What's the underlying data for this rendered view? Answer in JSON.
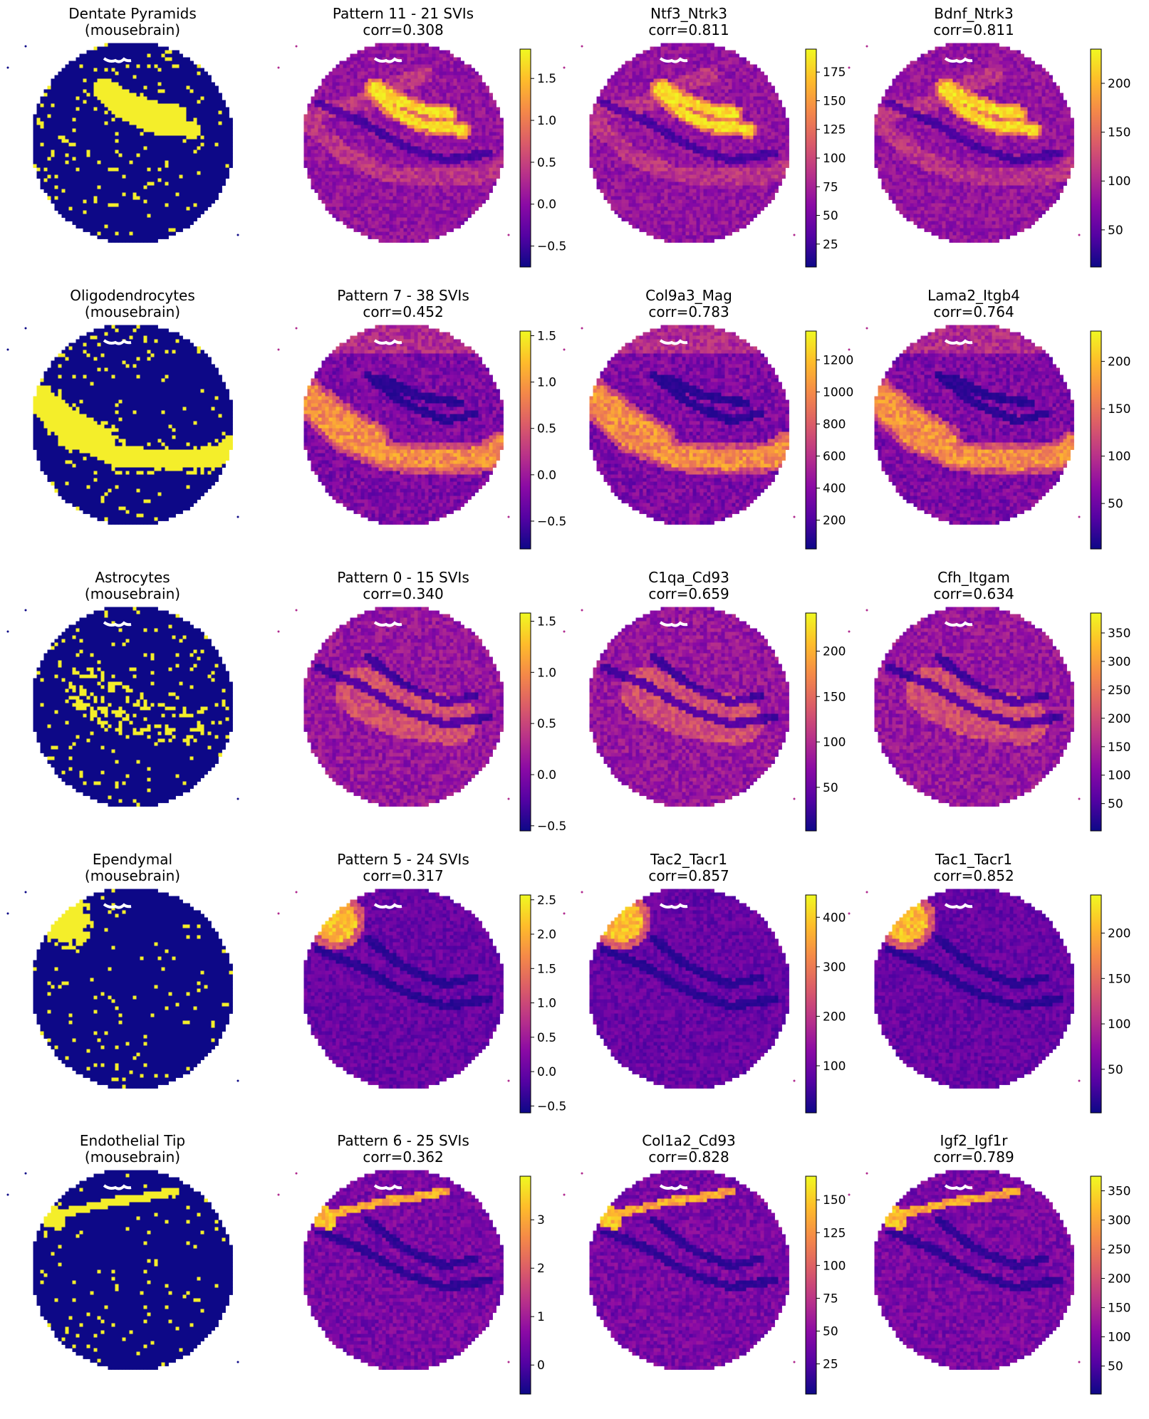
{
  "figure": {
    "colormap": "plasma",
    "categorical_colors": {
      "positive": "#f4ee2a",
      "negative": "#0d0887"
    },
    "missing_color": "#ffffff",
    "plot_type": "spatial scatter on circular tissue section"
  },
  "rows": [
    {
      "panels": [
        {
          "title_line1": "Dentate Pyramids",
          "title_line2": "(mousebrain)",
          "kind": "categorical",
          "feature": "dentate-band"
        },
        {
          "title_line1": "Pattern 11 - 21 SVIs",
          "title_line2": "corr=0.308",
          "kind": "continuous",
          "feature": "dentate-band",
          "colorbar": {
            "min": -0.75,
            "max": 1.85,
            "ticks": [
              1.5,
              1.0,
              0.5,
              0.0,
              -0.5
            ],
            "tick_labels": [
              "1.5",
              "1.0",
              "0.5",
              "0.0",
              "−0.5"
            ]
          }
        },
        {
          "title_line1": "Ntf3_Ntrk3",
          "title_line2": "corr=0.811",
          "kind": "continuous",
          "feature": "dentate-band",
          "colorbar": {
            "min": 5,
            "max": 195,
            "ticks": [
              175,
              150,
              125,
              100,
              75,
              50,
              25
            ],
            "tick_labels": [
              "175",
              "150",
              "125",
              "100",
              "75",
              "50",
              "25"
            ]
          }
        },
        {
          "title_line1": "Bdnf_Ntrk3",
          "title_line2": "corr=0.811",
          "kind": "continuous",
          "feature": "dentate-band",
          "colorbar": {
            "min": 12,
            "max": 235,
            "ticks": [
              200,
              150,
              100,
              50
            ],
            "tick_labels": [
              "200",
              "150",
              "100",
              "50"
            ]
          }
        }
      ]
    },
    {
      "panels": [
        {
          "title_line1": "Oligodendrocytes",
          "title_line2": "(mousebrain)",
          "kind": "categorical",
          "feature": "white-matter"
        },
        {
          "title_line1": "Pattern 7 - 38 SVIs",
          "title_line2": "corr=0.452",
          "kind": "continuous",
          "feature": "white-matter",
          "colorbar": {
            "min": -0.8,
            "max": 1.55,
            "ticks": [
              1.5,
              1.0,
              0.5,
              0.0,
              -0.5
            ],
            "tick_labels": [
              "1.5",
              "1.0",
              "0.5",
              "0.0",
              "−0.5"
            ]
          }
        },
        {
          "title_line1": "Col9a3_Mag",
          "title_line2": "corr=0.783",
          "kind": "continuous",
          "feature": "white-matter",
          "colorbar": {
            "min": 20,
            "max": 1380,
            "ticks": [
              1200,
              1000,
              800,
              600,
              400,
              200
            ],
            "tick_labels": [
              "1200",
              "1000",
              "800",
              "600",
              "400",
              "200"
            ]
          }
        },
        {
          "title_line1": "Lama2_Itgb4",
          "title_line2": "corr=0.764",
          "kind": "continuous",
          "feature": "white-matter",
          "colorbar": {
            "min": 2,
            "max": 232,
            "ticks": [
              200,
              150,
              100,
              50
            ],
            "tick_labels": [
              "200",
              "150",
              "100",
              "50"
            ]
          }
        }
      ]
    },
    {
      "panels": [
        {
          "title_line1": "Astrocytes",
          "title_line2": "(mousebrain)",
          "kind": "categorical",
          "feature": "astro"
        },
        {
          "title_line1": "Pattern 0 - 15 SVIs",
          "title_line2": "corr=0.340",
          "kind": "continuous",
          "feature": "astro",
          "colorbar": {
            "min": -0.55,
            "max": 1.58,
            "ticks": [
              1.5,
              1.0,
              0.5,
              0.0,
              -0.5
            ],
            "tick_labels": [
              "1.5",
              "1.0",
              "0.5",
              "0.0",
              "−0.5"
            ]
          }
        },
        {
          "title_line1": "C1qa_Cd93",
          "title_line2": "corr=0.659",
          "kind": "continuous",
          "feature": "astro",
          "colorbar": {
            "min": 2,
            "max": 242,
            "ticks": [
              200,
              150,
              100,
              50
            ],
            "tick_labels": [
              "200",
              "150",
              "100",
              "50"
            ]
          }
        },
        {
          "title_line1": "Cfh_Itgam",
          "title_line2": "corr=0.634",
          "kind": "continuous",
          "feature": "astro",
          "colorbar": {
            "min": 2,
            "max": 385,
            "ticks": [
              350,
              300,
              250,
              200,
              150,
              100,
              50
            ],
            "tick_labels": [
              "350",
              "300",
              "250",
              "200",
              "150",
              "100",
              "50"
            ]
          }
        }
      ]
    },
    {
      "panels": [
        {
          "title_line1": "Ependymal",
          "title_line2": "(mousebrain)",
          "kind": "categorical",
          "feature": "ependymal"
        },
        {
          "title_line1": "Pattern 5 - 24 SVIs",
          "title_line2": "corr=0.317",
          "kind": "continuous",
          "feature": "ependymal",
          "colorbar": {
            "min": -0.6,
            "max": 2.57,
            "ticks": [
              2.5,
              2.0,
              1.5,
              1.0,
              0.5,
              0.0,
              -0.5
            ],
            "tick_labels": [
              "2.5",
              "2.0",
              "1.5",
              "1.0",
              "0.5",
              "0.0",
              "−0.5"
            ]
          }
        },
        {
          "title_line1": "Tac2_Tacr1",
          "title_line2": "corr=0.857",
          "kind": "continuous",
          "feature": "ependymal",
          "colorbar": {
            "min": 5,
            "max": 445,
            "ticks": [
              400,
              300,
              200,
              100
            ],
            "tick_labels": [
              "400",
              "300",
              "200",
              "100"
            ]
          }
        },
        {
          "title_line1": "Tac1_Tacr1",
          "title_line2": "corr=0.852",
          "kind": "continuous",
          "feature": "ependymal",
          "colorbar": {
            "min": 2,
            "max": 242,
            "ticks": [
              200,
              150,
              100,
              50
            ],
            "tick_labels": [
              "200",
              "150",
              "100",
              "50"
            ]
          }
        }
      ]
    },
    {
      "panels": [
        {
          "title_line1": "Endothelial Tip",
          "title_line2": "(mousebrain)",
          "kind": "categorical",
          "feature": "endothelial"
        },
        {
          "title_line1": "Pattern 6 - 25 SVIs",
          "title_line2": "corr=0.362",
          "kind": "continuous",
          "feature": "endothelial",
          "colorbar": {
            "min": -0.6,
            "max": 3.9,
            "ticks": [
              3,
              2,
              1,
              0
            ],
            "tick_labels": [
              "3",
              "2",
              "1",
              "0"
            ]
          }
        },
        {
          "title_line1": "Col1a2_Cd93",
          "title_line2": "corr=0.828",
          "kind": "continuous",
          "feature": "endothelial",
          "colorbar": {
            "min": 2,
            "max": 168,
            "ticks": [
              150,
              125,
              100,
              75,
              50,
              25
            ],
            "tick_labels": [
              "150",
              "125",
              "100",
              "75",
              "50",
              "25"
            ]
          }
        },
        {
          "title_line1": "Igf2_Igf1r",
          "title_line2": "corr=0.789",
          "kind": "continuous",
          "feature": "endothelial",
          "colorbar": {
            "min": 2,
            "max": 375,
            "ticks": [
              350,
              300,
              250,
              200,
              150,
              100,
              50
            ],
            "tick_labels": [
              "350",
              "300",
              "250",
              "200",
              "150",
              "100",
              "50"
            ]
          }
        }
      ]
    }
  ],
  "chart_data": [
    {
      "type": "scatter",
      "title": "Dentate Pyramids (mousebrain)",
      "values_kind": "categorical",
      "series": [
        {
          "name": "Dentate Pyramids",
          "values": []
        }
      ]
    },
    {
      "type": "scatter",
      "title": "Pattern 11 - 21 SVIs corr=0.308",
      "values_kind": "continuous",
      "ylim": [
        -0.75,
        1.85
      ]
    },
    {
      "type": "scatter",
      "title": "Ntf3_Ntrk3 corr=0.811",
      "values_kind": "continuous",
      "ylim": [
        5,
        195
      ]
    },
    {
      "type": "scatter",
      "title": "Bdnf_Ntrk3 corr=0.811",
      "values_kind": "continuous",
      "ylim": [
        12,
        235
      ]
    },
    {
      "type": "scatter",
      "title": "Oligodendrocytes (mousebrain)",
      "values_kind": "categorical"
    },
    {
      "type": "scatter",
      "title": "Pattern 7 - 38 SVIs corr=0.452",
      "values_kind": "continuous",
      "ylim": [
        -0.8,
        1.55
      ]
    },
    {
      "type": "scatter",
      "title": "Col9a3_Mag corr=0.783",
      "values_kind": "continuous",
      "ylim": [
        20,
        1380
      ]
    },
    {
      "type": "scatter",
      "title": "Lama2_Itgb4 corr=0.764",
      "values_kind": "continuous",
      "ylim": [
        2,
        232
      ]
    },
    {
      "type": "scatter",
      "title": "Astrocytes (mousebrain)",
      "values_kind": "categorical"
    },
    {
      "type": "scatter",
      "title": "Pattern 0 - 15 SVIs corr=0.340",
      "values_kind": "continuous",
      "ylim": [
        -0.55,
        1.58
      ]
    },
    {
      "type": "scatter",
      "title": "C1qa_Cd93 corr=0.659",
      "values_kind": "continuous",
      "ylim": [
        2,
        242
      ]
    },
    {
      "type": "scatter",
      "title": "Cfh_Itgam corr=0.634",
      "values_kind": "continuous",
      "ylim": [
        2,
        385
      ]
    },
    {
      "type": "scatter",
      "title": "Ependymal (mousebrain)",
      "values_kind": "categorical"
    },
    {
      "type": "scatter",
      "title": "Pattern 5 - 24 SVIs corr=0.317",
      "values_kind": "continuous",
      "ylim": [
        -0.6,
        2.57
      ]
    },
    {
      "type": "scatter",
      "title": "Tac2_Tacr1 corr=0.857",
      "values_kind": "continuous",
      "ylim": [
        5,
        445
      ]
    },
    {
      "type": "scatter",
      "title": "Tac1_Tacr1 corr=0.852",
      "values_kind": "continuous",
      "ylim": [
        2,
        242
      ]
    },
    {
      "type": "scatter",
      "title": "Endothelial Tip (mousebrain)",
      "values_kind": "categorical"
    },
    {
      "type": "scatter",
      "title": "Pattern 6 - 25 SVIs corr=0.362",
      "values_kind": "continuous",
      "ylim": [
        -0.6,
        3.9
      ]
    },
    {
      "type": "scatter",
      "title": "Col1a2_Cd93 corr=0.828",
      "values_kind": "continuous",
      "ylim": [
        2,
        168
      ]
    },
    {
      "type": "scatter",
      "title": "Igf2_Igf1r corr=0.789",
      "values_kind": "continuous",
      "ylim": [
        2,
        375
      ]
    }
  ]
}
